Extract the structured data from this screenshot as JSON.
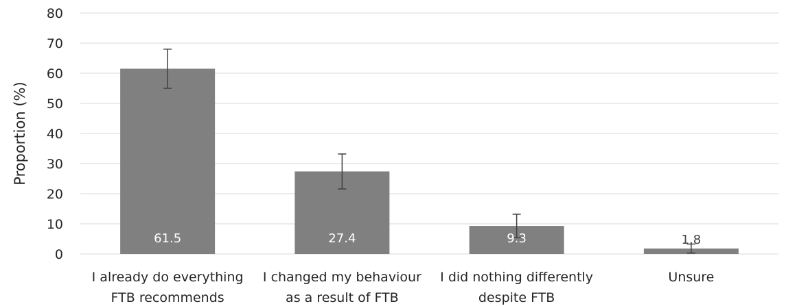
{
  "chart_data": {
    "type": "bar",
    "categories": [
      [
        "I already do everything",
        "FTB recommends"
      ],
      [
        "I changed my behaviour",
        "as a result of FTB"
      ],
      [
        "I did nothing differently",
        "despite FTB"
      ],
      [
        "Unsure"
      ]
    ],
    "values": [
      61.5,
      27.4,
      9.3,
      1.8
    ],
    "data_labels": [
      "61.5",
      "27.4",
      "9.3",
      "1.8"
    ],
    "error_bars": [
      {
        "low": 55.0,
        "high": 68.0
      },
      {
        "low": 21.6,
        "high": 33.2
      },
      {
        "low": 5.4,
        "high": 13.2
      },
      {
        "low": 0.3,
        "high": 3.3
      }
    ],
    "ylabel": "Proportion (%)",
    "xlabel": "",
    "ylim": [
      0,
      80
    ],
    "yticks": [
      0,
      10,
      20,
      30,
      40,
      50,
      60,
      70,
      80
    ],
    "grid": true,
    "colors": {
      "bar": "#808080",
      "grid": "#d9d9d9",
      "error_bar": "#404040",
      "label_inside": "#ffffff",
      "label_outside": "#404040"
    }
  }
}
